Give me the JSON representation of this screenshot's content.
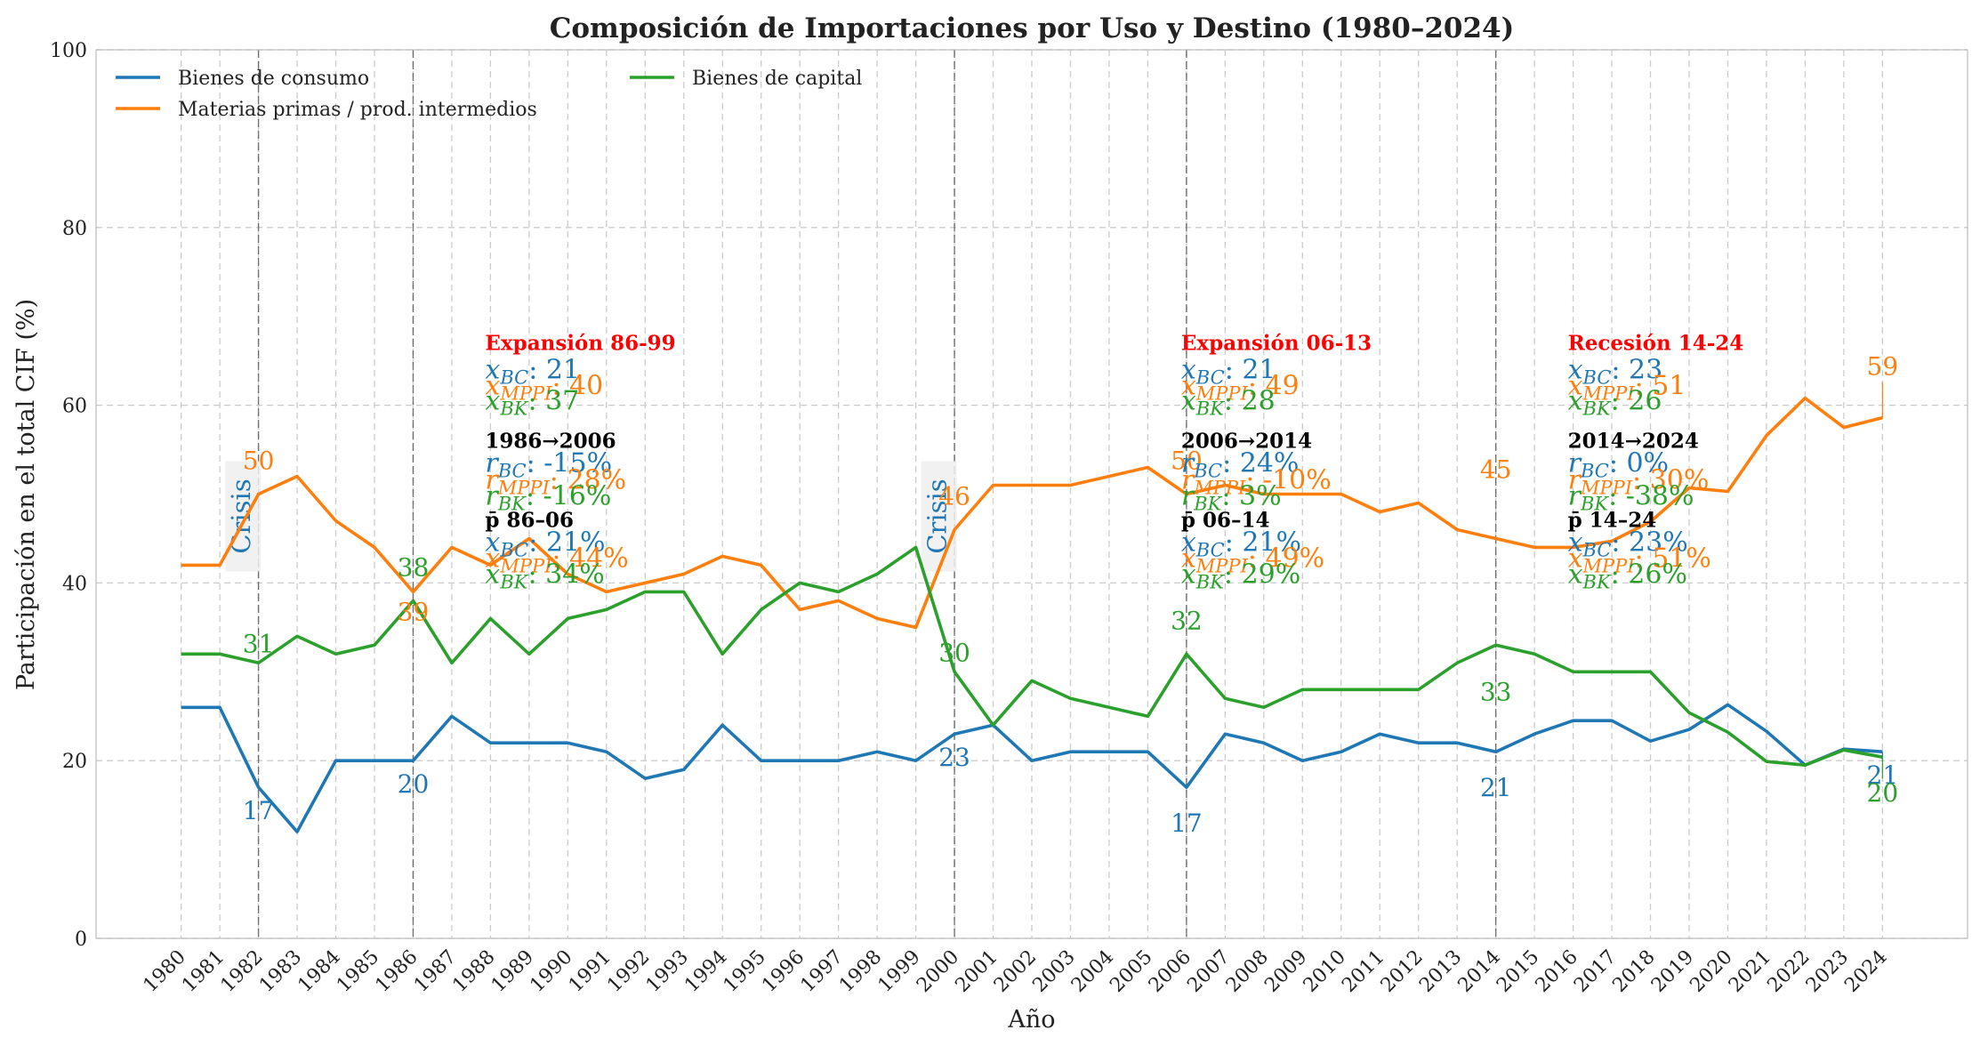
{
  "chart_data": {
    "type": "line",
    "title": "Composición de Importaciones por Uso y Destino (1980–2024)",
    "xlabel": "Año",
    "ylabel": "Participación en el total CIF (%)",
    "ylim": [
      0,
      100
    ],
    "yticks": [
      0,
      20,
      40,
      60,
      80,
      100
    ],
    "grid": true,
    "legend_position": "top-left",
    "x": [
      1980,
      1981,
      1982,
      1983,
      1984,
      1985,
      1986,
      1987,
      1988,
      1989,
      1990,
      1991,
      1992,
      1993,
      1994,
      1995,
      1996,
      1997,
      1998,
      1999,
      2000,
      2001,
      2002,
      2003,
      2004,
      2005,
      2006,
      2007,
      2008,
      2009,
      2010,
      2011,
      2012,
      2013,
      2014,
      2015,
      2016,
      2017,
      2018,
      2019,
      2020,
      2021,
      2022,
      2023,
      2024
    ],
    "series": [
      {
        "name": "Bienes de consumo",
        "color": "#1f77b4",
        "values": [
          26,
          26,
          17,
          12,
          20,
          20,
          20,
          25,
          22,
          22,
          22,
          21,
          18,
          19,
          24,
          20,
          20,
          20,
          21,
          20,
          23,
          24,
          20,
          21,
          21,
          21,
          17,
          23,
          22,
          20,
          21,
          23,
          22,
          22,
          21,
          23,
          24.5,
          24.5,
          22.2,
          23.5,
          26.3,
          23.3,
          19.5,
          21.3,
          21
        ]
      },
      {
        "name": "Materias primas / prod. intermedios",
        "color": "#ff7f0e",
        "values": [
          42,
          42,
          50,
          52,
          47,
          44,
          39,
          44,
          42,
          45,
          41,
          39,
          40,
          41,
          43,
          42,
          37,
          38,
          36,
          35,
          46,
          51,
          51,
          51,
          52,
          53,
          50,
          51,
          50,
          50,
          50,
          48,
          49,
          46,
          45,
          44,
          44,
          44.7,
          46.9,
          50.7,
          50.3,
          56.6,
          60.8,
          57.5,
          58.6
        ]
      },
      {
        "name": "Bienes de capital",
        "color": "#2ca02c",
        "values": [
          32,
          32,
          31,
          34,
          32,
          33,
          38,
          31,
          36,
          32,
          36,
          37,
          39,
          39,
          32,
          37,
          40,
          39,
          41,
          44,
          30,
          24,
          29,
          27,
          26,
          25,
          32,
          27,
          26,
          28,
          28,
          28,
          28,
          31,
          33,
          32,
          30,
          30,
          30,
          25.4,
          23.2,
          19.9,
          19.5,
          21.2,
          20.4
        ]
      }
    ],
    "vlines": [
      1982,
      1986,
      2000,
      2006,
      2014
    ],
    "crisis_labels": [
      {
        "year": 1981.6,
        "text": "Crisis"
      },
      {
        "year": 1999.6,
        "text": "Crisis"
      }
    ],
    "point_labels": [
      {
        "series": 0,
        "year": 1982,
        "text": "17"
      },
      {
        "series": 0,
        "year": 1986,
        "text": "20"
      },
      {
        "series": 0,
        "year": 2000,
        "text": "23"
      },
      {
        "series": 0,
        "year": 2006,
        "text": "17"
      },
      {
        "series": 0,
        "year": 2014,
        "text": "21"
      },
      {
        "series": 0,
        "year": 2024,
        "text": "21"
      },
      {
        "series": 1,
        "year": 1982,
        "text": "50"
      },
      {
        "series": 1,
        "year": 1986,
        "text": "39"
      },
      {
        "series": 1,
        "year": 2000,
        "text": "46"
      },
      {
        "series": 1,
        "year": 2006,
        "text": "50"
      },
      {
        "series": 1,
        "year": 2014,
        "text": "45"
      },
      {
        "series": 1,
        "year": 2024,
        "text": "59"
      },
      {
        "series": 2,
        "year": 1982,
        "text": "31"
      },
      {
        "series": 2,
        "year": 1986,
        "text": "38"
      },
      {
        "series": 2,
        "year": 2000,
        "text": "30"
      },
      {
        "series": 2,
        "year": 2006,
        "text": "32"
      },
      {
        "series": 2,
        "year": 2014,
        "text": "33"
      },
      {
        "series": 2,
        "year": 2024,
        "text": "20"
      }
    ],
    "annotation_blocks": [
      {
        "year": 1988,
        "header": "Expansión 86-99",
        "means": {
          "bc": "21",
          "mppi": "40",
          "bk": "37"
        },
        "change_title": "1986→2006",
        "changes": {
          "bc": "-15%",
          "mppi": "28%",
          "bk": "-16%"
        },
        "avg_title": "p̄ 86–06",
        "avgs": {
          "bc": "21%",
          "mppi": "44%",
          "bk": "34%"
        }
      },
      {
        "year": 2006,
        "header": "Expansión 06-13",
        "means": {
          "bc": "21",
          "mppi": "49",
          "bk": "28"
        },
        "change_title": "2006→2014",
        "changes": {
          "bc": "24%",
          "mppi": "-10%",
          "bk": "3%"
        },
        "avg_title": "p̄ 06–14",
        "avgs": {
          "bc": "21%",
          "mppi": "49%",
          "bk": "29%"
        }
      },
      {
        "year": 2016,
        "header": "Recesión 14-24",
        "means": {
          "bc": "23",
          "mppi": "51",
          "bk": "26"
        },
        "change_title": "2014→2024",
        "changes": {
          "bc": "0%",
          "mppi": "30%",
          "bk": "-38%"
        },
        "avg_title": "p̄ 14–24",
        "avgs": {
          "bc": "23%",
          "mppi": "51%",
          "bk": "26%"
        }
      }
    ]
  }
}
